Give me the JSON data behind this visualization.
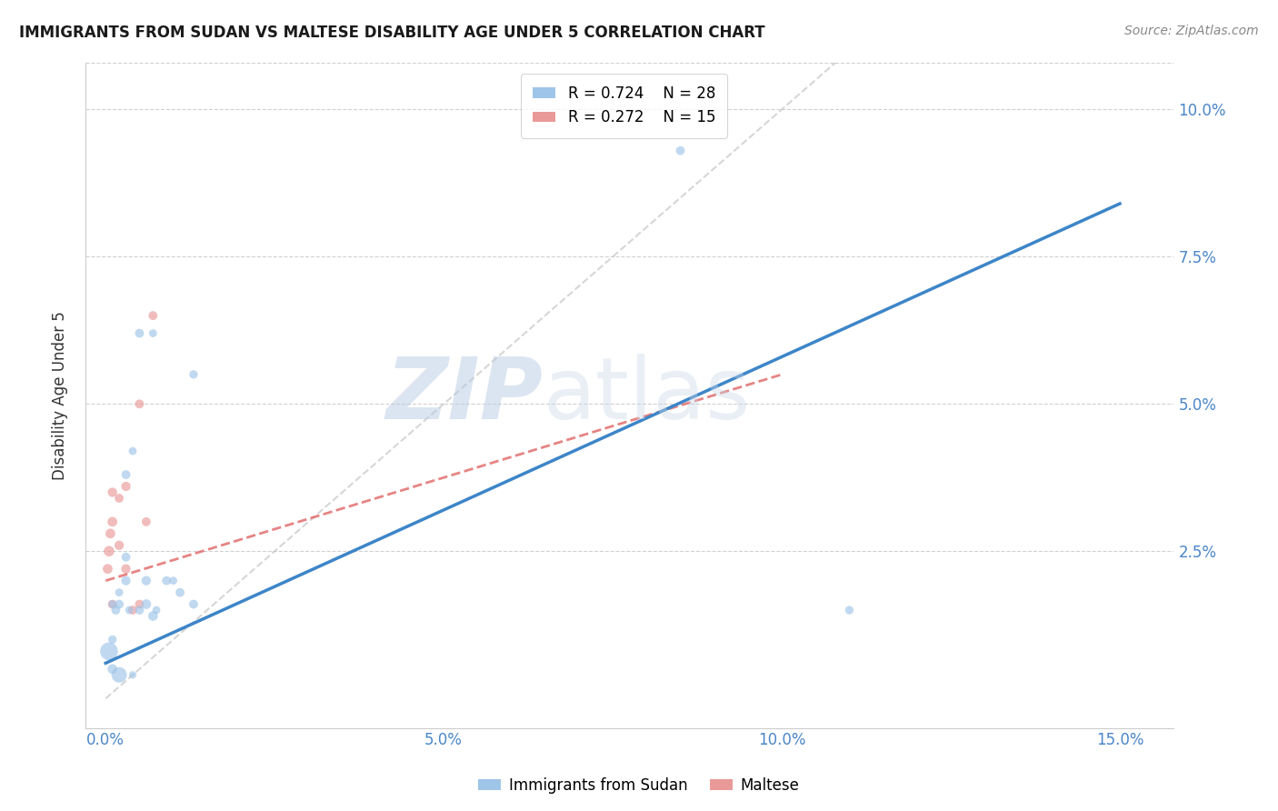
{
  "title": "IMMIGRANTS FROM SUDAN VS MALTESE DISABILITY AGE UNDER 5 CORRELATION CHART",
  "source": "Source: ZipAtlas.com",
  "xlabel_ticks": [
    "0.0%",
    "5.0%",
    "10.0%",
    "15.0%"
  ],
  "xlabel_tick_vals": [
    0.0,
    0.05,
    0.1,
    0.15
  ],
  "ylabel_ticks": [
    "2.5%",
    "5.0%",
    "7.5%",
    "10.0%"
  ],
  "ylabel_tick_vals": [
    0.025,
    0.05,
    0.075,
    0.1
  ],
  "ylabel": "Disability Age Under 5",
  "xlim": [
    -0.003,
    0.158
  ],
  "ylim": [
    -0.005,
    0.108
  ],
  "sudan_R": 0.724,
  "sudan_N": 28,
  "maltese_R": 0.272,
  "maltese_N": 15,
  "sudan_color": "#9fc5e8",
  "maltese_color": "#ea9999",
  "sudan_line_color": "#3d85c8",
  "maltese_line_color": "#e06666",
  "maltese_line_dash": true,
  "trendline_color": "#bbbbbb",
  "sudan_points_x": [
    0.0005,
    0.001,
    0.001,
    0.001,
    0.0015,
    0.002,
    0.002,
    0.002,
    0.003,
    0.003,
    0.003,
    0.0035,
    0.004,
    0.004,
    0.005,
    0.005,
    0.006,
    0.006,
    0.007,
    0.007,
    0.0075,
    0.009,
    0.01,
    0.011,
    0.013,
    0.013,
    0.085,
    0.11
  ],
  "sudan_points_y": [
    0.008,
    0.005,
    0.01,
    0.016,
    0.015,
    0.004,
    0.016,
    0.018,
    0.02,
    0.024,
    0.038,
    0.015,
    0.004,
    0.042,
    0.015,
    0.062,
    0.016,
    0.02,
    0.014,
    0.062,
    0.015,
    0.02,
    0.02,
    0.018,
    0.016,
    0.055,
    0.093,
    0.015
  ],
  "sudan_sizes": [
    200,
    60,
    45,
    40,
    50,
    150,
    50,
    40,
    55,
    50,
    50,
    40,
    35,
    40,
    50,
    50,
    60,
    55,
    60,
    40,
    40,
    50,
    40,
    50,
    50,
    45,
    50,
    45
  ],
  "maltese_points_x": [
    0.0003,
    0.0005,
    0.0007,
    0.001,
    0.001,
    0.001,
    0.002,
    0.002,
    0.003,
    0.003,
    0.004,
    0.005,
    0.005,
    0.006,
    0.007
  ],
  "maltese_points_y": [
    0.022,
    0.025,
    0.028,
    0.016,
    0.03,
    0.035,
    0.026,
    0.034,
    0.022,
    0.036,
    0.015,
    0.016,
    0.05,
    0.03,
    0.065
  ],
  "maltese_sizes": [
    60,
    70,
    60,
    50,
    60,
    55,
    55,
    50,
    55,
    55,
    50,
    50,
    50,
    50,
    50
  ],
  "sudan_trendline": [
    0.0,
    0.006,
    0.15,
    0.084
  ],
  "maltese_trendline": [
    0.0,
    0.02,
    0.1,
    0.055
  ],
  "diag_line": [
    0.0,
    0.0,
    0.108,
    0.108
  ],
  "watermark_zip": "ZIP",
  "watermark_atlas": "atlas",
  "background_color": "#ffffff",
  "grid_color": "#cccccc"
}
